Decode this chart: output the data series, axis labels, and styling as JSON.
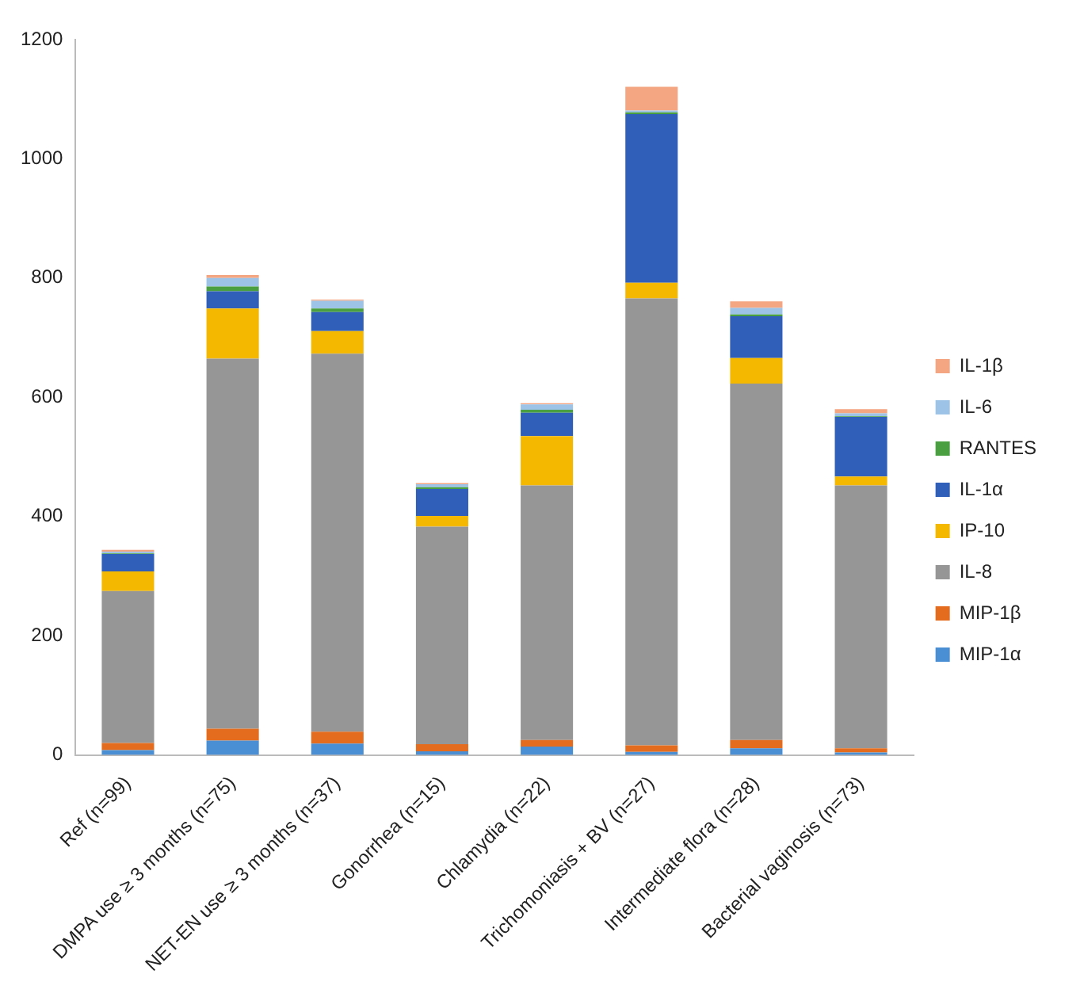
{
  "chart_data": {
    "type": "bar",
    "stacked": true,
    "categories": [
      "Ref (n=99)",
      "DMPA use ≥ 3 months (n=75)",
      "NET-EN use ≥ 3 months (n=37)",
      "Gonorrhea (n=15)",
      "Chlamydia (n=22)",
      "Trichomoniasis + BV (n=27)",
      "Intermediate flora (n=28)",
      "Bacterial vaginosis (n=73)"
    ],
    "series": [
      {
        "name": "MIP-1α",
        "color": "#4a8fd4",
        "values": [
          8,
          24,
          19,
          6,
          14,
          5,
          11,
          4
        ]
      },
      {
        "name": "MIP-1β",
        "color": "#e46c1e",
        "values": [
          12,
          20,
          20,
          12,
          11,
          11,
          14,
          7
        ]
      },
      {
        "name": "IL-8",
        "color": "#969696",
        "values": [
          255,
          621,
          634,
          365,
          427,
          750,
          598,
          441
        ]
      },
      {
        "name": "IP-10",
        "color": "#f5b800",
        "values": [
          33,
          84,
          38,
          18,
          83,
          26,
          43,
          15
        ]
      },
      {
        "name": "IL-1α",
        "color": "#2f5fb8",
        "values": [
          29,
          29,
          32,
          45,
          39,
          283,
          70,
          100
        ]
      },
      {
        "name": "RANTES",
        "color": "#4aa040",
        "values": [
          1,
          8,
          6,
          3,
          5,
          3,
          3,
          1
        ]
      },
      {
        "name": "IL-6",
        "color": "#9dc3e6",
        "values": [
          3,
          14,
          13,
          5,
          9,
          3,
          11,
          5
        ]
      },
      {
        "name": "IL-1β",
        "color": "#f4a582",
        "values": [
          3,
          5,
          2,
          2,
          2,
          40,
          11,
          7
        ]
      }
    ],
    "ylim": [
      0,
      1200
    ],
    "yticks": [
      0,
      200,
      400,
      600,
      800,
      1000,
      1200
    ],
    "grid": false,
    "legend": "right"
  }
}
